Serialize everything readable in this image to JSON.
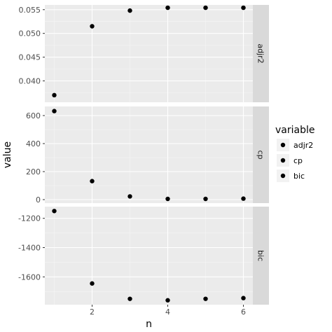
{
  "colors": {
    "panel_bg": "#ebebeb",
    "grid_major": "#ffffff",
    "grid_minor": "#f5f5f5",
    "strip_bg": "#d9d9d9",
    "point": "#000000",
    "tick": "#333333"
  },
  "chart_data": {
    "type": "scatter",
    "facet": "rows",
    "xlabel": "n",
    "ylabel": "value",
    "x_ticks": [
      2,
      4,
      6
    ],
    "x_range": [
      0.75,
      6.25
    ],
    "legend": {
      "title": "variable",
      "position": "right",
      "entries": [
        "adjr2",
        "cp",
        "bic"
      ]
    },
    "panels": [
      {
        "strip": "adjr2",
        "y_range": [
          0.0355,
          0.056
        ],
        "y_ticks": [
          0.04,
          0.045,
          0.05,
          0.055
        ],
        "y_tick_labels": [
          "0.040",
          "0.045",
          "0.050",
          "0.055"
        ],
        "points": [
          [
            1,
            0.037
          ],
          [
            2,
            0.0515
          ],
          [
            3,
            0.0548
          ],
          [
            4,
            0.0554
          ],
          [
            5,
            0.0554
          ],
          [
            6,
            0.0554
          ]
        ]
      },
      {
        "strip": "cp",
        "y_range": [
          -25,
          665
        ],
        "y_ticks": [
          0,
          200,
          400,
          600
        ],
        "y_tick_labels": [
          "0",
          "200",
          "400",
          "600"
        ],
        "points": [
          [
            1,
            632
          ],
          [
            2,
            132
          ],
          [
            3,
            23
          ],
          [
            4,
            5
          ],
          [
            5,
            5
          ],
          [
            6,
            7
          ]
        ]
      },
      {
        "strip": "bic",
        "y_range": [
          -1790,
          -1120
        ],
        "y_ticks": [
          -1200,
          -1400,
          -1600
        ],
        "y_tick_labels": [
          "-1200",
          "-1400",
          "-1600"
        ],
        "points": [
          [
            1,
            -1150
          ],
          [
            2,
            -1645
          ],
          [
            3,
            -1750
          ],
          [
            4,
            -1760
          ],
          [
            5,
            -1750
          ],
          [
            6,
            -1745
          ]
        ]
      }
    ]
  }
}
